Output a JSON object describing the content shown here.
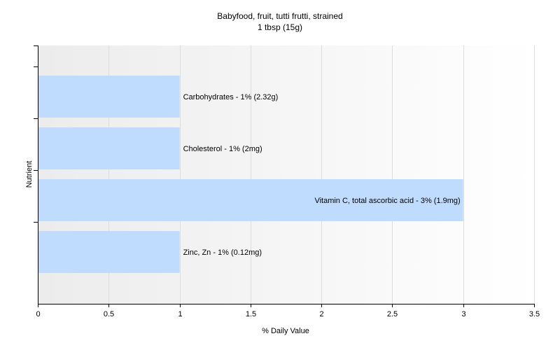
{
  "chart_data": {
    "type": "bar",
    "orientation": "horizontal",
    "title": "Babyfood, fruit, tutti frutti, strained",
    "subtitle": "1 tbsp (15g)",
    "xlabel": "% Daily Value",
    "ylabel": "Nutrient",
    "xlim": [
      0,
      3.5
    ],
    "x_ticks": [
      "0",
      "0.5",
      "1",
      "1.5",
      "2",
      "2.5",
      "3",
      "3.5"
    ],
    "grid": "vertical",
    "categories": [
      "Carbohydrates",
      "Cholesterol",
      "Vitamin C, total ascorbic acid",
      "Zinc, Zn"
    ],
    "values": [
      1,
      1,
      3,
      1
    ],
    "data_labels": [
      "Carbohydrates - 1% (2.32g)",
      "Cholesterol - 1% (2mg)",
      "Vitamin C, total ascorbic acid - 3% (1.9mg)",
      "Zinc, Zn - 1% (0.12mg)"
    ],
    "bar_color": "#bfdcff",
    "plot_background": "gradient-light-gray",
    "grid_color": "#dddddd"
  }
}
